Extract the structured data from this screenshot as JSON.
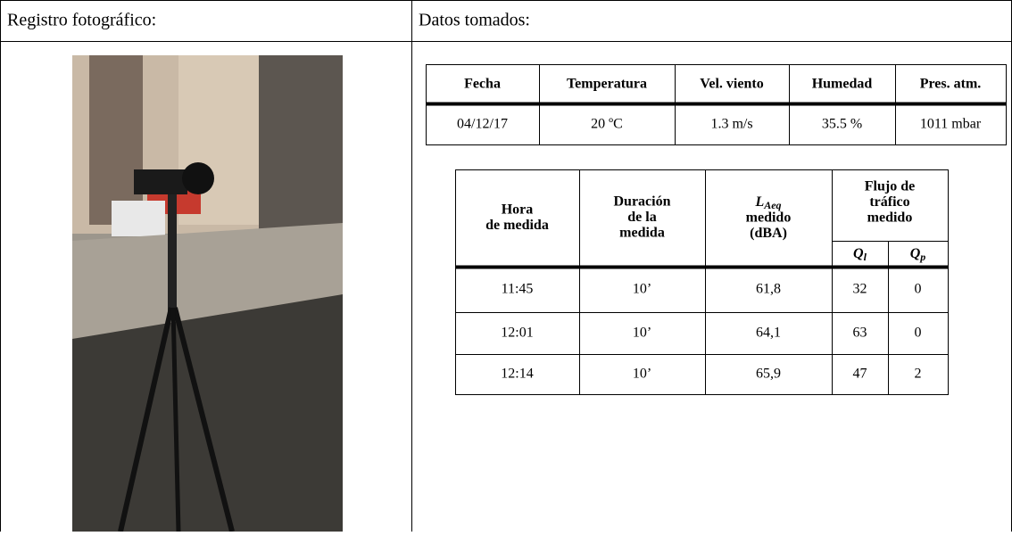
{
  "photo_section": {
    "title": "Registro fotográfico:"
  },
  "data_section": {
    "title": "Datos tomados:"
  },
  "conditions_table": {
    "headers": [
      "Fecha",
      "Temperatura",
      "Vel. viento",
      "Humedad",
      "Pres. atm."
    ],
    "rows": [
      [
        "04/12/17",
        "20 ºC",
        "1.3 m/s",
        "35.5 %",
        "1011 mbar"
      ]
    ]
  },
  "measurements_table": {
    "headers": [
      {
        "lines": [
          "Hora",
          "de medida"
        ]
      },
      {
        "lines": [
          "Duración",
          "de la",
          "medida"
        ]
      },
      {
        "symbol": "L",
        "subscript": "Aeq",
        "lines": [
          "medido",
          "(dBA)"
        ]
      },
      {
        "lines": [
          "Flujo de",
          "tráfico",
          "medido"
        ]
      }
    ],
    "subheaders": [
      {
        "symbol": "Q",
        "subscript": "l"
      },
      {
        "symbol": "Q",
        "subscript": "p"
      }
    ],
    "rows": [
      [
        "11:45",
        "10’",
        "61,8",
        "32",
        "0"
      ],
      [
        "12:01",
        "10’",
        "64,1",
        "63",
        "0"
      ],
      [
        "12:14",
        "10’",
        "65,9",
        "47",
        "2"
      ]
    ]
  }
}
